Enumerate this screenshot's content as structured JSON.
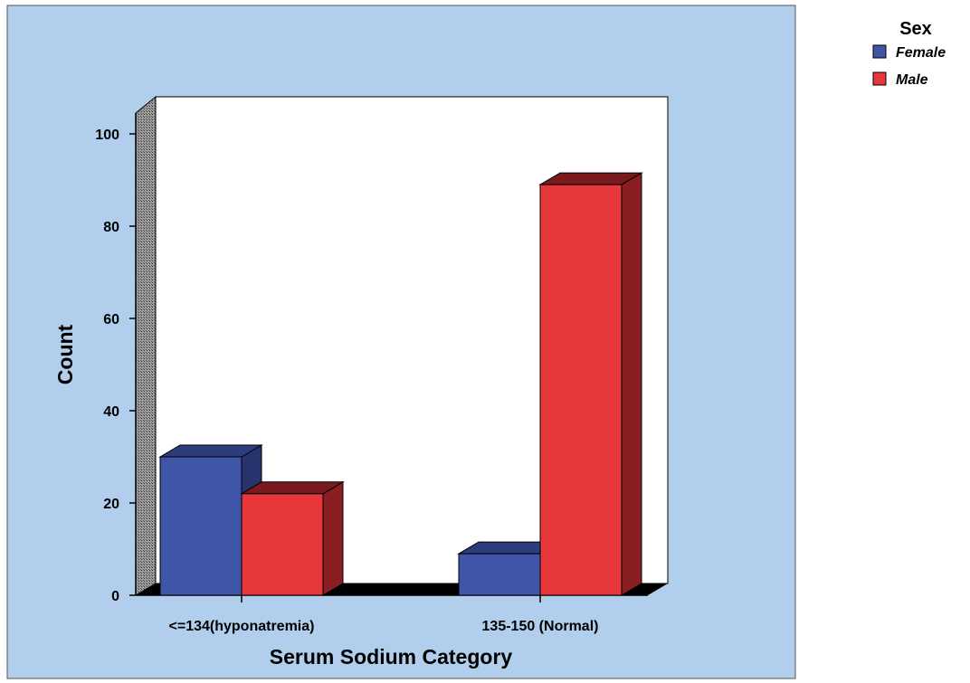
{
  "chart_data": {
    "type": "bar",
    "style": "3d-clustered",
    "xlabel": "Serum Sodium Category",
    "ylabel": "Count",
    "categories": [
      "<=134(hyponatremia)",
      "135-150 (Normal)"
    ],
    "ylim": [
      0,
      100
    ],
    "yticks": [
      0,
      20,
      40,
      60,
      80,
      100
    ],
    "grid": false,
    "legend": {
      "title": "Sex",
      "placement": "outside-top-right"
    },
    "series": [
      {
        "name": "Female",
        "values": [
          30,
          9
        ],
        "color": "#3f55a8",
        "side_color": "#28336e",
        "top_color": "#2c3c7c"
      },
      {
        "name": "Male",
        "values": [
          22,
          89
        ],
        "color": "#e8373a",
        "side_color": "#8b1e22",
        "top_color": "#7a1a1e"
      }
    ],
    "colors": {
      "outer_background": "#b1cfed",
      "plot_background": "#ffffff",
      "floor": "#000000"
    }
  }
}
